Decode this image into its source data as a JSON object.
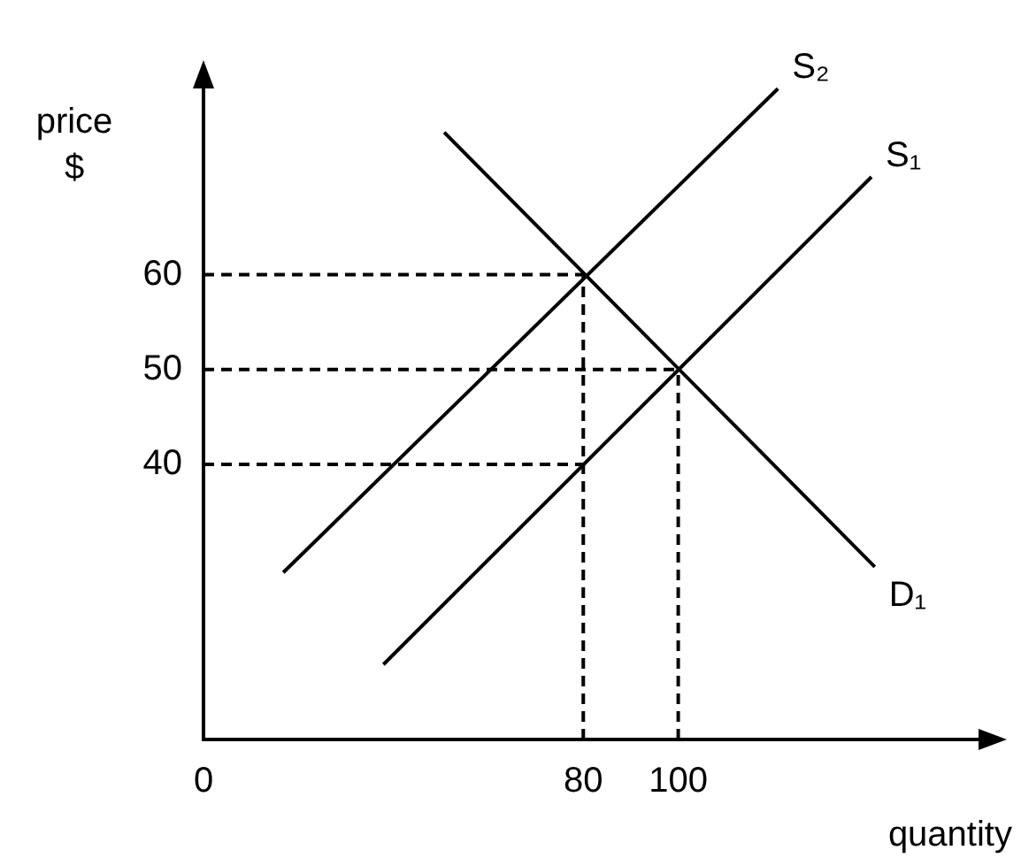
{
  "chart_data": {
    "type": "line",
    "xlabel": "quantity",
    "ylabel": "price\n$",
    "xlim": [
      0,
      164
    ],
    "ylim": [
      11,
      80
    ],
    "xticks": [
      0,
      80,
      100
    ],
    "yticks": [
      40,
      50,
      60
    ],
    "grid": false,
    "legend": false,
    "marker": "none",
    "series": [
      {
        "name": "S₂",
        "color": "#000000",
        "x": [
          16.8,
          121
        ],
        "values": [
          28.6,
          79.6
        ]
      },
      {
        "name": "S₁",
        "color": "#000000",
        "x": [
          37.9,
          140.7
        ],
        "values": [
          18.9,
          70.3
        ]
      },
      {
        "name": "D₁",
        "color": "#000000",
        "x": [
          50.7,
          141.4
        ],
        "values": [
          75,
          29.2
        ]
      },
      {
        "color": "#000000",
        "line_style": "dashed",
        "x": [
          0,
          80
        ],
        "values": [
          60,
          60
        ]
      },
      {
        "color": "#000000",
        "line_style": "dashed",
        "x": [
          0,
          100
        ],
        "values": [
          50,
          50
        ]
      },
      {
        "color": "#000000",
        "line_style": "dashed",
        "x": [
          0,
          80
        ],
        "values": [
          40,
          40
        ]
      },
      {
        "color": "#000000",
        "line_style": "dashed",
        "x": [
          80,
          80
        ],
        "values": [
          11,
          60
        ]
      },
      {
        "color": "#000000",
        "line_style": "dashed",
        "x": [
          100,
          100
        ],
        "values": [
          11,
          50
        ]
      }
    ]
  }
}
